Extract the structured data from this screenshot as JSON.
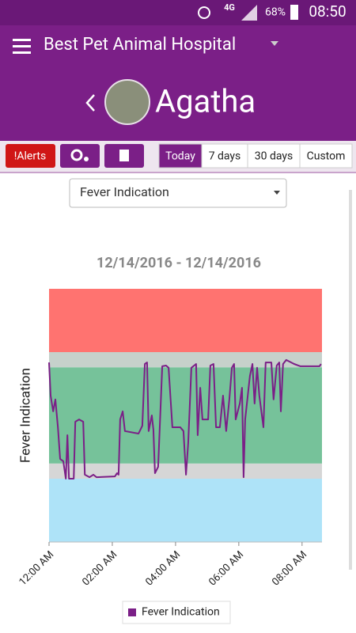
{
  "status_bar": {
    "network": "4G",
    "battery": "68%",
    "time": "08:50"
  },
  "header": {
    "hospital": "Best Pet Animal Hospital",
    "pet_name": "Agatha"
  },
  "toolbar": {
    "alerts": "!Alerts",
    "ranges": [
      "Today",
      "7 days",
      "30 days",
      "Custom"
    ],
    "selected_range": 0
  },
  "selector": "Fever Indication",
  "chart_data": {
    "type": "line",
    "title": "12/14/2016 - 12/14/2016",
    "y_label": "Fever Indication",
    "x": [
      0,
      0.05,
      0.13,
      0.2,
      0.28,
      0.35,
      0.45,
      0.53,
      0.58,
      0.63,
      0.78,
      0.83,
      0.95,
      1.08,
      1.13,
      1.28,
      1.4,
      1.5,
      2.08,
      2.15,
      2.2,
      2.25,
      2.33,
      2.4,
      2.83,
      2.95,
      3.03,
      3.1,
      3.15,
      3.25,
      3.3,
      3.35,
      3.45,
      3.58,
      3.7,
      3.78,
      3.9,
      4.15,
      4.25,
      4.33,
      4.4,
      4.5,
      4.65,
      4.7,
      4.78,
      4.85,
      5.03,
      5.1,
      5.2,
      5.28,
      5.4,
      5.5,
      5.6,
      5.7,
      5.78,
      5.85,
      5.9,
      6.03,
      6.1,
      6.15,
      6.2,
      6.35,
      6.43,
      6.5,
      6.58,
      6.65,
      6.78,
      6.85,
      7.03,
      7.1,
      7.2,
      7.28,
      7.33,
      7.4,
      7.5,
      7.75,
      7.95,
      8.55,
      8.6
    ],
    "series": [
      {
        "name": "Fever Indication",
        "color": "#7b1f87",
        "values": [
          70.9,
          57.8,
          51.6,
          56.3,
          45.3,
          32.8,
          31.9,
          25.0,
          42.2,
          25.0,
          25.0,
          47.5,
          48.4,
          47.5,
          26.6,
          25.6,
          26.6,
          25.6,
          25.9,
          27.2,
          26.6,
          48.4,
          51.6,
          43.8,
          42.8,
          45.9,
          70.3,
          70.9,
          43.8,
          50.0,
          44.4,
          27.2,
          29.7,
          69.4,
          69.7,
          68.8,
          45.3,
          45.3,
          43.8,
          26.6,
          39.1,
          68.8,
          70.3,
          42.2,
          60.9,
          48.4,
          48.4,
          69.7,
          70.3,
          45.3,
          45.3,
          57.8,
          43.8,
          56.3,
          68.8,
          70.3,
          48.4,
          54.7,
          60.9,
          25.6,
          48.4,
          65.6,
          70.3,
          54.7,
          68.8,
          57.8,
          45.3,
          70.9,
          70.9,
          56.3,
          69.7,
          70.9,
          51.6,
          70.3,
          71.9,
          70.3,
          69.4,
          69.4,
          70.3
        ]
      }
    ],
    "bands": [
      {
        "from": 0,
        "to": 25,
        "color": "#aee3f8"
      },
      {
        "from": 25,
        "to": 31,
        "color": "#d6d6d6"
      },
      {
        "from": 31,
        "to": 69,
        "color": "#76c29a"
      },
      {
        "from": 69,
        "to": 75,
        "color": "#c6d1cb"
      },
      {
        "from": 75,
        "to": 100,
        "color": "#ff7370"
      }
    ],
    "xlim": [
      0,
      8.63
    ],
    "ylim": [
      0,
      100
    ],
    "xticks": [
      {
        "value": 0,
        "label": "12:00 AM"
      },
      {
        "value": 2,
        "label": "02:00 AM"
      },
      {
        "value": 4,
        "label": "04:00 AM"
      },
      {
        "value": 6,
        "label": "06:00 AM"
      },
      {
        "value": 8,
        "label": "08:00 AM"
      }
    ]
  }
}
